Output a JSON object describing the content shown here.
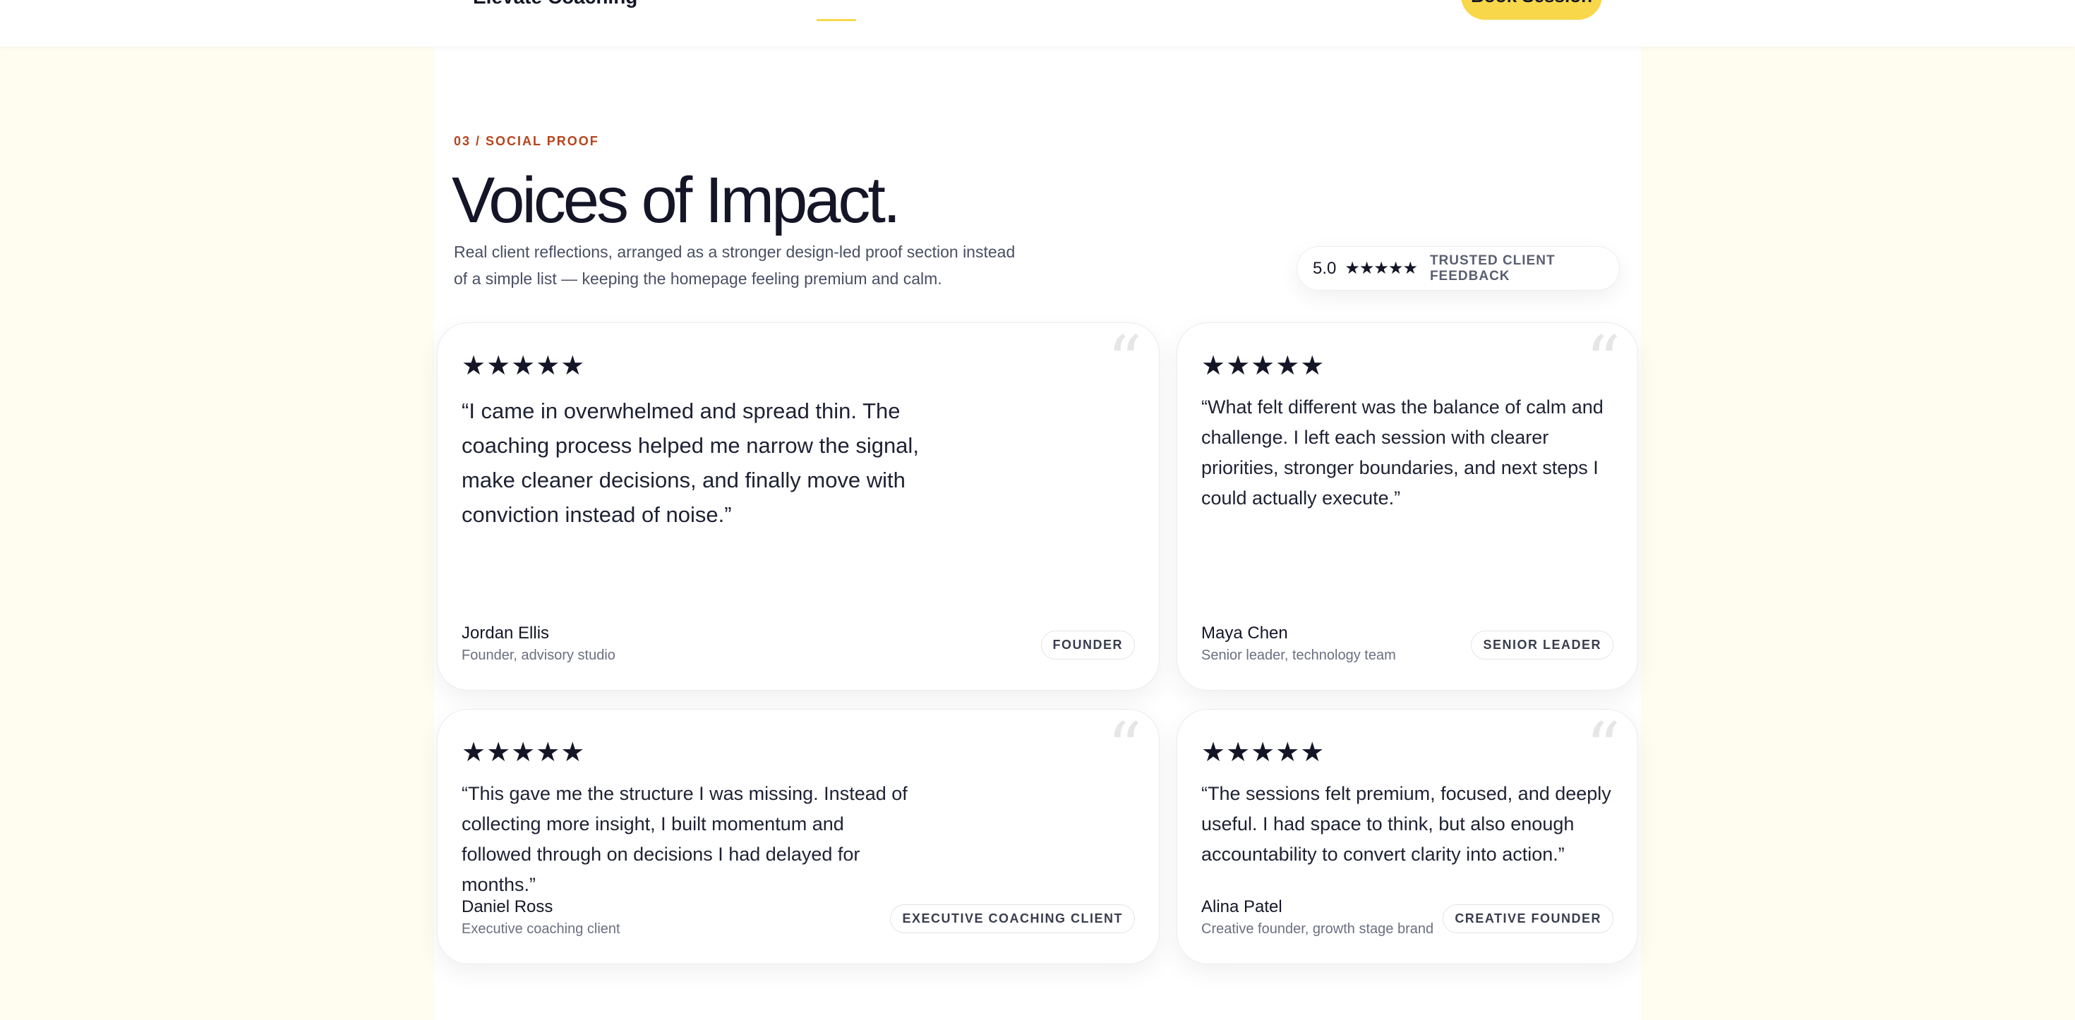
{
  "header": {
    "logo": "Elevate Coaching",
    "cta": "Book Session",
    "accent": "#f8d84a"
  },
  "section": {
    "eyebrow": "03 / SOCIAL PROOF",
    "title": "Voices of Impact.",
    "subtitle": "Real client reflections, arranged as a stronger design-led proof section instead of a simple list — keeping the homepage feeling premium and calm.",
    "badge": {
      "score": "5.0",
      "stars": "★★★★★",
      "label": "TRUSTED CLIENT FEEDBACK"
    }
  },
  "testimonials": [
    {
      "stars": "★★★★★",
      "rating": 5,
      "quote": "“I came in overwhelmed and spread thin. The coaching process helped me narrow the signal, make cleaner decisions, and finally move with conviction instead of noise.”",
      "name": "Jordan Ellis",
      "role": "Founder, advisory studio",
      "tag": "FOUNDER"
    },
    {
      "stars": "★★★★★",
      "rating": 5,
      "quote": "“What felt different was the balance of calm and challenge. I left each session with clearer priorities, stronger boundaries, and next steps I could actually execute.”",
      "name": "Maya Chen",
      "role": "Senior leader, technology team",
      "tag": "SENIOR LEADER"
    },
    {
      "stars": "★★★★★",
      "rating": 5,
      "quote": "“This gave me the structure I was missing. Instead of collecting more insight, I built momentum and followed through on decisions I had delayed for months.”",
      "name": "Daniel Ross",
      "role": "Executive coaching client",
      "tag": "EXECUTIVE COACHING CLIENT"
    },
    {
      "stars": "★★★★★",
      "rating": 5,
      "quote": "“The sessions felt premium, focused, and deeply useful. I had space to think, but also enough accountability to convert clarity into action.”",
      "name": "Alina Patel",
      "role": "Creative founder, growth stage brand",
      "tag": "CREATIVE FOUNDER"
    }
  ],
  "quote_icon": "quote-mark-icon",
  "colors": {
    "eyebrow": "#b5441b",
    "background": "#fffcf0",
    "text": "#141627"
  }
}
